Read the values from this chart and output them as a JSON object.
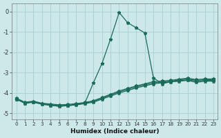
{
  "xlabel": "Humidex (Indice chaleur)",
  "background_color": "#cce8e8",
  "grid_color": "#aacfcf",
  "line_color": "#1a6b5a",
  "xlim": [
    -0.5,
    23.5
  ],
  "ylim": [
    -5.3,
    0.4
  ],
  "yticks": [
    0,
    -1,
    -2,
    -3,
    -4,
    -5
  ],
  "xticks": [
    0,
    1,
    2,
    3,
    4,
    5,
    6,
    7,
    8,
    9,
    10,
    11,
    12,
    13,
    14,
    15,
    16,
    17,
    18,
    19,
    20,
    21,
    22,
    23
  ],
  "curves": [
    {
      "x": [
        0,
        1,
        2,
        3,
        4,
        5,
        6,
        7,
        8,
        9,
        10,
        11,
        12,
        13,
        14,
        15,
        16,
        17,
        18,
        19,
        20,
        21,
        22,
        23
      ],
      "y": [
        -4.3,
        -4.5,
        -4.45,
        -4.55,
        -4.6,
        -4.65,
        -4.62,
        -4.58,
        -4.5,
        -3.5,
        -2.55,
        -1.35,
        -0.05,
        -0.55,
        -0.8,
        -1.05,
        -3.25,
        -3.55,
        -3.45,
        -3.42,
        -3.38,
        -3.48,
        -3.42,
        -3.42
      ]
    },
    {
      "x": [
        0,
        1,
        2,
        3,
        4,
        5,
        6,
        7,
        8,
        9,
        10,
        11,
        12,
        13,
        14,
        15,
        16,
        17,
        18,
        19,
        20,
        21,
        22,
        23
      ],
      "y": [
        -4.3,
        -4.5,
        -4.45,
        -4.55,
        -4.6,
        -4.65,
        -4.62,
        -4.58,
        -4.52,
        -4.45,
        -4.3,
        -4.15,
        -4.0,
        -3.88,
        -3.75,
        -3.65,
        -3.55,
        -3.5,
        -3.45,
        -3.4,
        -3.35,
        -3.42,
        -3.38,
        -3.38
      ]
    },
    {
      "x": [
        0,
        1,
        2,
        3,
        4,
        5,
        6,
        7,
        8,
        9,
        10,
        11,
        12,
        13,
        14,
        15,
        16,
        17,
        18,
        19,
        20,
        21,
        22,
        23
      ],
      "y": [
        -4.3,
        -4.48,
        -4.43,
        -4.52,
        -4.57,
        -4.62,
        -4.6,
        -4.55,
        -4.49,
        -4.42,
        -4.26,
        -4.1,
        -3.95,
        -3.82,
        -3.7,
        -3.6,
        -3.5,
        -3.46,
        -3.42,
        -3.36,
        -3.31,
        -3.38,
        -3.35,
        -3.35
      ]
    },
    {
      "x": [
        0,
        1,
        2,
        3,
        4,
        5,
        6,
        7,
        8,
        9,
        10,
        11,
        12,
        13,
        14,
        15,
        16,
        17,
        18,
        19,
        20,
        21,
        22,
        23
      ],
      "y": [
        -4.25,
        -4.45,
        -4.4,
        -4.5,
        -4.54,
        -4.58,
        -4.56,
        -4.52,
        -4.46,
        -4.38,
        -4.22,
        -4.06,
        -3.9,
        -3.77,
        -3.65,
        -3.55,
        -3.44,
        -3.41,
        -3.38,
        -3.32,
        -3.27,
        -3.34,
        -3.31,
        -3.31
      ]
    }
  ]
}
